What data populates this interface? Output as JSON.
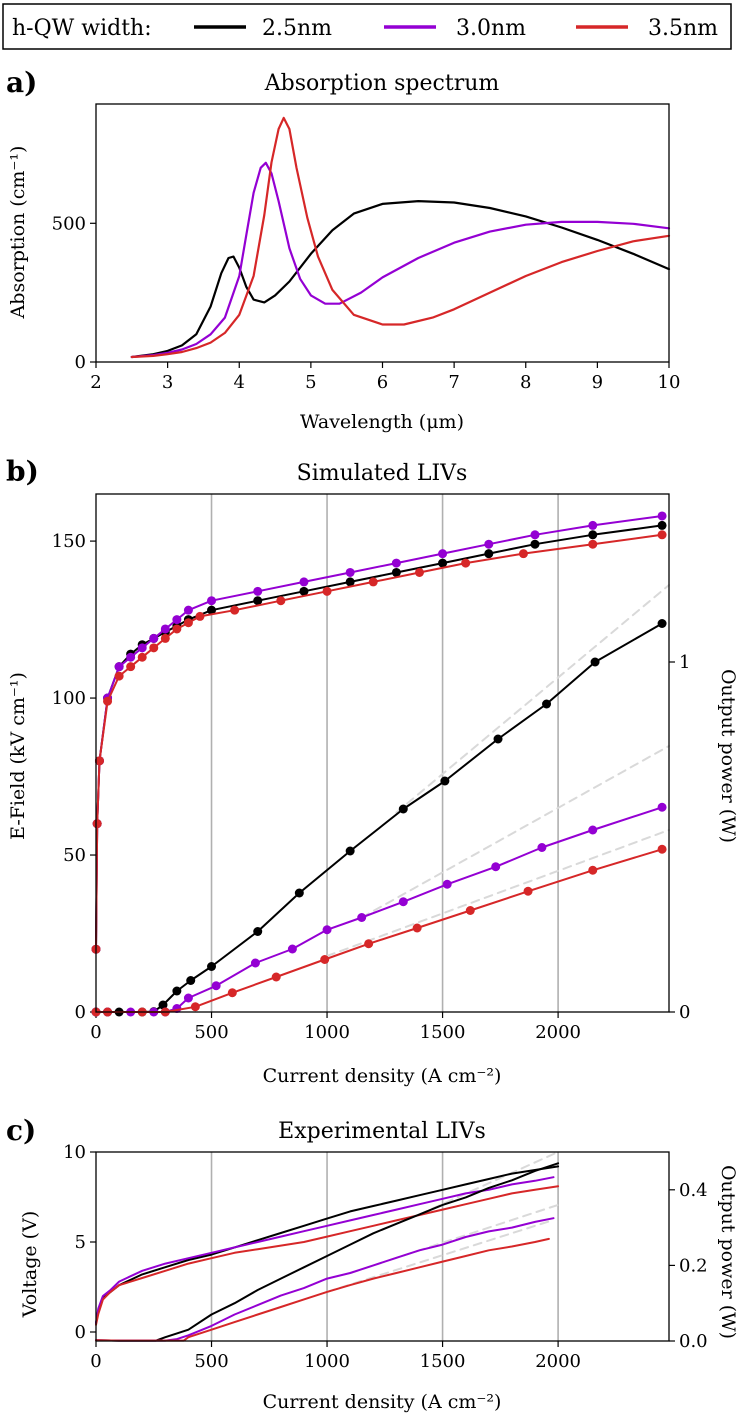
{
  "legend": {
    "title": "h-QW width:",
    "entries": [
      {
        "label": "2.5nm",
        "color": "#000000"
      },
      {
        "label": "3.0nm",
        "color": "#9400d3"
      },
      {
        "label": "3.5nm",
        "color": "#d62728"
      }
    ]
  },
  "panels": {
    "a": {
      "label": "a)",
      "title": "Absorption spectrum"
    },
    "b": {
      "label": "b)",
      "title": "Simulated LIVs"
    },
    "c": {
      "label": "c)",
      "title": "Experimental LIVs"
    }
  },
  "chart_data": [
    {
      "type": "line",
      "title": "Absorption spectrum",
      "xlabel": "Wavelength (μm)",
      "ylabel": "Absorption (cm⁻¹)",
      "xlim": [
        2,
        10
      ],
      "ylim": [
        0,
        930
      ],
      "xticks": [
        "2",
        "3",
        "4",
        "5",
        "6",
        "7",
        "8",
        "9",
        "10"
      ],
      "yticks": [
        "0",
        "500"
      ],
      "series": [
        {
          "name": "2.5nm",
          "x": [
            2.5,
            2.8,
            3.0,
            3.2,
            3.4,
            3.6,
            3.75,
            3.85,
            3.92,
            4.0,
            4.1,
            4.2,
            4.35,
            4.5,
            4.7,
            5.0,
            5.3,
            5.6,
            6.0,
            6.5,
            7.0,
            7.5,
            8.0,
            8.5,
            9.0,
            9.5,
            10.0
          ],
          "y": [
            18,
            28,
            40,
            60,
            100,
            200,
            320,
            375,
            380,
            340,
            270,
            225,
            215,
            240,
            290,
            390,
            475,
            535,
            570,
            580,
            575,
            555,
            525,
            485,
            440,
            390,
            335
          ]
        },
        {
          "name": "3.0nm",
          "x": [
            2.5,
            2.8,
            3.0,
            3.2,
            3.4,
            3.6,
            3.8,
            4.0,
            4.1,
            4.2,
            4.3,
            4.37,
            4.45,
            4.55,
            4.7,
            4.85,
            5.0,
            5.2,
            5.4,
            5.7,
            6.0,
            6.5,
            7.0,
            7.5,
            8.0,
            8.5,
            9.0,
            9.5,
            10.0
          ],
          "y": [
            18,
            25,
            33,
            45,
            65,
            100,
            160,
            310,
            460,
            610,
            700,
            718,
            680,
            580,
            410,
            300,
            240,
            210,
            210,
            250,
            305,
            375,
            430,
            470,
            495,
            505,
            505,
            498,
            482
          ]
        },
        {
          "name": "3.5nm",
          "x": [
            2.5,
            2.8,
            3.0,
            3.2,
            3.4,
            3.6,
            3.8,
            4.0,
            4.2,
            4.35,
            4.45,
            4.55,
            4.62,
            4.7,
            4.8,
            4.95,
            5.1,
            5.3,
            5.6,
            6.0,
            6.3,
            6.7,
            7.0,
            7.5,
            8.0,
            8.5,
            9.0,
            9.5,
            10.0
          ],
          "y": [
            18,
            22,
            28,
            36,
            50,
            70,
            105,
            170,
            310,
            530,
            720,
            840,
            880,
            840,
            700,
            520,
            380,
            260,
            170,
            135,
            135,
            160,
            190,
            250,
            310,
            360,
            400,
            435,
            455
          ]
        }
      ]
    },
    {
      "type": "line",
      "title": "Simulated LIVs",
      "xlabel": "Current density (A cm⁻²)",
      "ylabel": "E-Field (kV cm⁻¹)",
      "y2label": "Output power (W)",
      "xlim": [
        0,
        2480
      ],
      "ylim": [
        0,
        165
      ],
      "y2lim": [
        0,
        1.48
      ],
      "xticks": [
        "0",
        "500",
        "1000",
        "1500",
        "2000"
      ],
      "yticks": [
        "0",
        "50",
        "100",
        "150"
      ],
      "y2ticks": [
        "0",
        "1"
      ],
      "grid": "vertical",
      "efield": [
        {
          "name": "2.5nm",
          "x": [
            0,
            5,
            15,
            50,
            100,
            150,
            200,
            250,
            300,
            350,
            400,
            500,
            700,
            900,
            1100,
            1300,
            1500,
            1700,
            1900,
            2150,
            2450
          ],
          "y": [
            20,
            60,
            80,
            100,
            110,
            114,
            117,
            119,
            121,
            123,
            125,
            128,
            131,
            134,
            137,
            140,
            143,
            146,
            149,
            152,
            155
          ]
        },
        {
          "name": "3.0nm",
          "x": [
            0,
            5,
            15,
            50,
            100,
            150,
            200,
            250,
            300,
            350,
            400,
            500,
            700,
            900,
            1100,
            1300,
            1500,
            1700,
            1900,
            2150,
            2450
          ],
          "y": [
            20,
            60,
            80,
            100,
            110,
            113,
            116,
            119,
            122,
            125,
            128,
            131,
            134,
            137,
            140,
            143,
            146,
            149,
            152,
            155,
            158
          ]
        },
        {
          "name": "3.5nm",
          "x": [
            0,
            5,
            15,
            50,
            100,
            150,
            200,
            250,
            300,
            350,
            400,
            450,
            600,
            800,
            1000,
            1200,
            1400,
            1600,
            1850,
            2150,
            2450
          ],
          "y": [
            20,
            60,
            80,
            99,
            107,
            110,
            113,
            116,
            119,
            122,
            124,
            126,
            128,
            131,
            134,
            137,
            140,
            143,
            146,
            149,
            152
          ]
        }
      ],
      "power": [
        {
          "name": "2.5nm",
          "x": [
            0,
            50,
            100,
            200,
            250,
            290,
            350,
            410,
            500,
            700,
            880,
            1100,
            1330,
            1510,
            1740,
            1950,
            2160,
            2450
          ],
          "y": [
            0,
            0,
            0,
            0,
            0.001,
            0.02,
            0.06,
            0.09,
            0.13,
            0.23,
            0.34,
            0.46,
            0.58,
            0.66,
            0.78,
            0.88,
            1.0,
            1.11
          ]
        },
        {
          "name": "3.0nm",
          "x": [
            0,
            50,
            150,
            250,
            300,
            350,
            400,
            520,
            690,
            850,
            1000,
            1150,
            1330,
            1520,
            1730,
            1930,
            2150,
            2450
          ],
          "y": [
            0,
            0,
            0,
            0,
            0,
            0.01,
            0.04,
            0.075,
            0.14,
            0.18,
            0.235,
            0.27,
            0.315,
            0.365,
            0.415,
            0.47,
            0.52,
            0.585
          ]
        },
        {
          "name": "3.5nm",
          "x": [
            0,
            50,
            200,
            300,
            430,
            590,
            780,
            990,
            1180,
            1390,
            1620,
            1870,
            2150,
            2450
          ],
          "y": [
            0,
            0,
            0,
            0,
            0.015,
            0.055,
            0.1,
            0.15,
            0.195,
            0.24,
            0.29,
            0.345,
            0.405,
            0.465
          ]
        }
      ],
      "fits": [
        {
          "name": "2.5nm",
          "x": [
            1300,
            2480
          ],
          "y": [
            0.57,
            1.22
          ]
        },
        {
          "name": "3.0nm",
          "x": [
            1150,
            2480
          ],
          "y": [
            0.27,
            0.76
          ]
        },
        {
          "name": "3.5nm",
          "x": [
            1000,
            2480
          ],
          "y": [
            0.16,
            0.52
          ]
        }
      ]
    },
    {
      "type": "line",
      "title": "Experimental LIVs",
      "xlabel": "Current density (A cm⁻²)",
      "ylabel": "Voltage (V)",
      "y2label": "Output power (W)",
      "xlim": [
        0,
        2480
      ],
      "ylim": [
        -0.5,
        10
      ],
      "y2lim": [
        0,
        0.5
      ],
      "xticks": [
        "0",
        "500",
        "1000",
        "1500",
        "2000"
      ],
      "yticks": [
        "0",
        "5",
        "10"
      ],
      "y2ticks": [
        "0.0",
        "0.2",
        "0.4"
      ],
      "grid": "vertical",
      "voltage": [
        {
          "name": "2.5nm",
          "x": [
            0,
            10,
            30,
            60,
            100,
            200,
            300,
            400,
            500,
            600,
            700,
            800,
            900,
            1000,
            1100,
            1200,
            1300,
            1400,
            1500,
            1600,
            1700,
            1800,
            1900,
            2000
          ],
          "y": [
            0.5,
            1.2,
            1.9,
            2.2,
            2.6,
            3.2,
            3.6,
            4.0,
            4.3,
            4.7,
            5.1,
            5.5,
            5.9,
            6.3,
            6.7,
            7.0,
            7.3,
            7.6,
            7.9,
            8.2,
            8.5,
            8.8,
            9.0,
            9.2
          ]
        },
        {
          "name": "3.0nm",
          "x": [
            0,
            10,
            30,
            60,
            100,
            200,
            300,
            400,
            500,
            600,
            700,
            800,
            900,
            1000,
            1100,
            1200,
            1300,
            1400,
            1500,
            1600,
            1700,
            1800,
            1900,
            1980
          ],
          "y": [
            0.5,
            1.3,
            2.0,
            2.3,
            2.8,
            3.4,
            3.8,
            4.1,
            4.4,
            4.7,
            5.0,
            5.3,
            5.6,
            5.9,
            6.2,
            6.5,
            6.8,
            7.1,
            7.4,
            7.7,
            7.9,
            8.2,
            8.4,
            8.6
          ]
        },
        {
          "name": "3.5nm",
          "x": [
            0,
            10,
            30,
            60,
            100,
            200,
            300,
            400,
            500,
            600,
            700,
            800,
            900,
            1000,
            1100,
            1200,
            1300,
            1400,
            1500,
            1600,
            1700,
            1800,
            1900,
            2000
          ],
          "y": [
            0.4,
            1.0,
            1.8,
            2.2,
            2.6,
            3.0,
            3.4,
            3.8,
            4.1,
            4.4,
            4.6,
            4.8,
            5.0,
            5.3,
            5.6,
            5.9,
            6.2,
            6.5,
            6.8,
            7.1,
            7.4,
            7.7,
            7.9,
            8.1
          ]
        }
      ],
      "power": [
        {
          "name": "2.5nm",
          "x": [
            0,
            100,
            200,
            260,
            300,
            350,
            400,
            500,
            600,
            700,
            800,
            900,
            1000,
            1100,
            1200,
            1300,
            1400,
            1500,
            1600,
            1700,
            1800,
            1900,
            2000
          ],
          "y": [
            0.002,
            0.001,
            0.001,
            0.001,
            0.01,
            0.02,
            0.03,
            0.07,
            0.1,
            0.135,
            0.165,
            0.195,
            0.225,
            0.255,
            0.285,
            0.31,
            0.335,
            0.36,
            0.38,
            0.405,
            0.425,
            0.45,
            0.47
          ]
        },
        {
          "name": "3.0nm",
          "x": [
            0,
            100,
            200,
            300,
            350,
            400,
            500,
            600,
            700,
            800,
            900,
            1000,
            1100,
            1200,
            1300,
            1400,
            1500,
            1600,
            1700,
            1800,
            1900,
            1980
          ],
          "y": [
            0.002,
            0.001,
            0.001,
            0.001,
            0.005,
            0.015,
            0.04,
            0.07,
            0.095,
            0.12,
            0.14,
            0.165,
            0.18,
            0.2,
            0.22,
            0.24,
            0.255,
            0.275,
            0.29,
            0.3,
            0.315,
            0.325
          ]
        },
        {
          "name": "3.5nm",
          "x": [
            0,
            100,
            200,
            300,
            380,
            400,
            500,
            600,
            700,
            800,
            900,
            1000,
            1100,
            1200,
            1300,
            1400,
            1500,
            1600,
            1700,
            1800,
            1900,
            1960
          ],
          "y": [
            0.002,
            0.001,
            0.001,
            0.001,
            0.001,
            0.01,
            0.03,
            0.05,
            0.07,
            0.09,
            0.11,
            0.13,
            0.148,
            0.165,
            0.18,
            0.195,
            0.21,
            0.225,
            0.24,
            0.25,
            0.262,
            0.27
          ]
        }
      ],
      "fits": [
        {
          "name": "2.5nm",
          "x": [
            1400,
            2000
          ],
          "y": [
            0.335,
            0.5
          ]
        },
        {
          "name": "3.0nm",
          "x": [
            1100,
            2000
          ],
          "y": [
            0.18,
            0.36
          ]
        },
        {
          "name": "3.5nm",
          "x": [
            1000,
            1980
          ],
          "y": [
            0.13,
            0.32
          ]
        }
      ]
    }
  ]
}
